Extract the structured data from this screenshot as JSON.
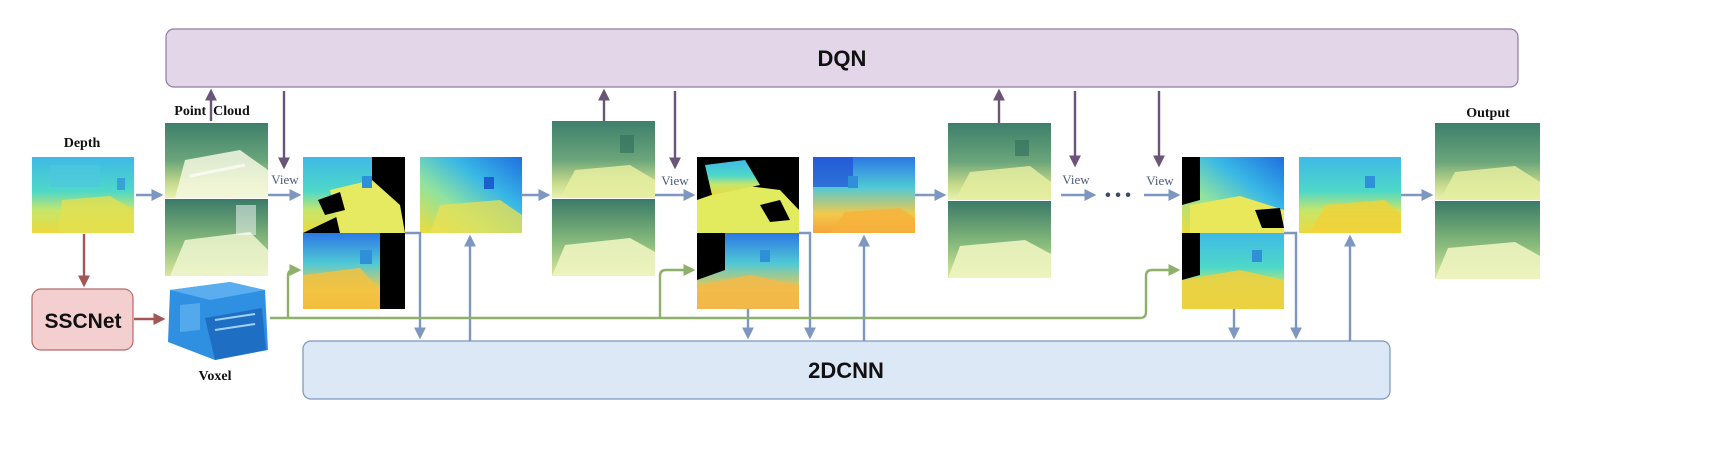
{
  "blocks": {
    "dqn": "DQN",
    "cnn": "2DCNN",
    "ssc": "SSCNet"
  },
  "labels": {
    "depth": "Depth",
    "point_cloud": "Point  Cloud",
    "voxel": "Voxel",
    "output": "Output",
    "view": "View",
    "ellipsis": "• • •"
  },
  "colors": {
    "dqn_fill": "#e2d6e8",
    "dqn_stroke": "#8f7aa1",
    "cnn_fill": "#dde8f6",
    "cnn_stroke": "#7b96bf",
    "ssc_fill": "#f4cfcf",
    "ssc_stroke": "#b56a6a",
    "arrow_purple": "#6a5578",
    "arrow_blue": "#7d97c0",
    "arrow_green": "#8db06a",
    "arrow_red": "#a35656",
    "voxel_blue": "#2f8fe0"
  }
}
